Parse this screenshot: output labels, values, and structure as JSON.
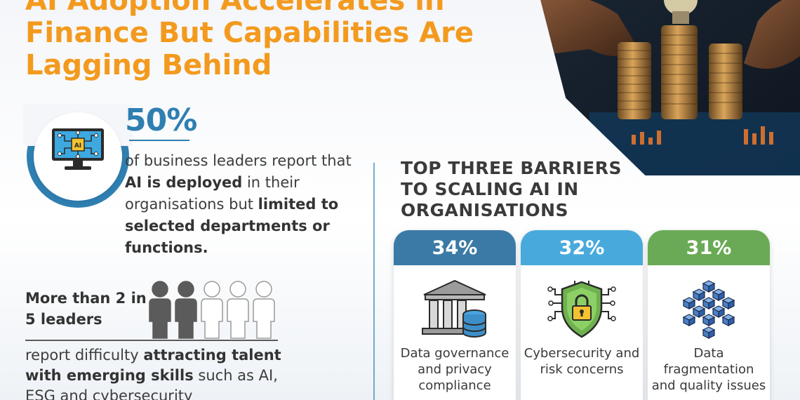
{
  "headline": {
    "line1": "AI Adoption Accelerates in",
    "line2": "Finance But Capabilities Are",
    "line3": "Lagging Behind"
  },
  "stat": {
    "percent": "50%",
    "icon": "ai-monitor-icon",
    "text_part1": "of business leaders report that ",
    "text_bold1": "AI is deployed",
    "text_part2": " in their organisations but ",
    "text_bold2": "limited to selected departments or functions."
  },
  "talent": {
    "headline": "More than 2 in 5 leaders",
    "people_filled": 2,
    "people_total": 5,
    "text_part1": "report difficulty ",
    "text_bold": "attracting talent with emerging skills",
    "text_part2": " such as AI, ESG and cybersecurity"
  },
  "barriers": {
    "title_line1": "TOP THREE BARRIERS",
    "title_line2": "TO SCALING AI IN",
    "title_line3": "ORGANISATIONS",
    "items": [
      {
        "percent": "34%",
        "label": "Data governance and privacy compliance",
        "color": "#3b7aa6",
        "icon": "bank-database-icon"
      },
      {
        "percent": "32%",
        "label": "Cybersecurity and risk concerns",
        "color": "#48aadc",
        "icon": "shield-lock-icon"
      },
      {
        "percent": "31%",
        "label": "Data fragmentation and quality issues",
        "color": "#6aaa56",
        "icon": "cubes-icon"
      }
    ]
  },
  "colors": {
    "orange": "#f39a1e",
    "blue": "#2f7fb1",
    "dark_gray": "#5b5b5b"
  }
}
